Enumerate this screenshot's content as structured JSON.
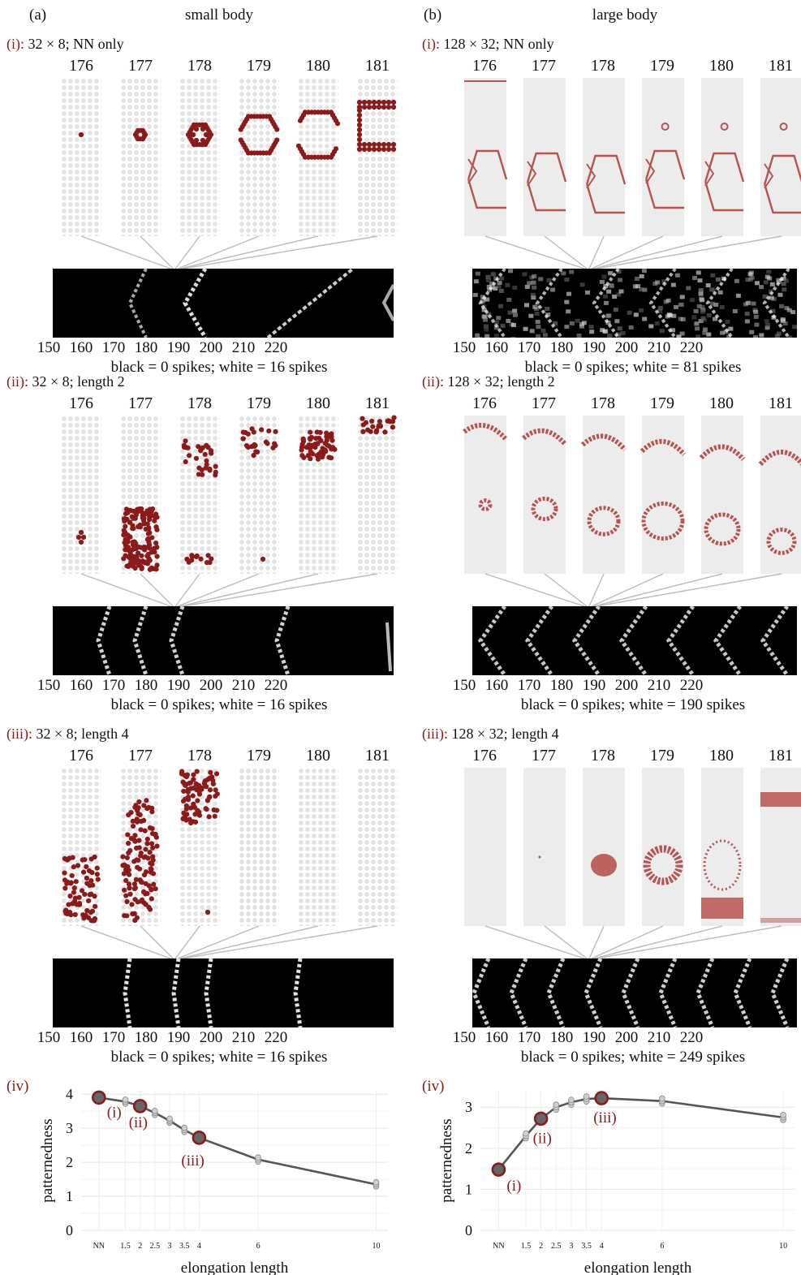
{
  "figure": {
    "panel_a": {
      "letter": "(a)",
      "title": "small body",
      "sub_i": {
        "roman": "(i):",
        "text": "32 × 8; NN only",
        "caption": "black = 0 spikes; white = 16 spikes"
      },
      "sub_ii": {
        "roman": "(ii):",
        "text": "32 × 8; length 2",
        "caption": "black = 0 spikes; white = 16 spikes"
      },
      "sub_iii": {
        "roman": "(iii):",
        "text": "32 × 8; length 4",
        "caption": "black = 0 spikes; white = 16 spikes"
      }
    },
    "panel_b": {
      "letter": "(b)",
      "title": "large body",
      "sub_i": {
        "roman": "(i):",
        "text": "128 × 32; NN only",
        "caption": "black = 0 spikes; white = 81 spikes"
      },
      "sub_ii": {
        "roman": "(ii):",
        "text": "128 × 32; length 2",
        "caption": "black = 0 spikes; white = 190 spikes"
      },
      "sub_iii": {
        "roman": "(iii):",
        "text": "128 × 32; length 4",
        "caption": "black = 0 spikes; white = 249 spikes"
      }
    },
    "time_labels": [
      "176",
      "177",
      "178",
      "179",
      "180",
      "181"
    ],
    "kymo_ticks": [
      "150",
      "160",
      "170",
      "180",
      "190",
      "200",
      "210",
      "220"
    ],
    "colors": {
      "spike_dark": "#8b1a1a",
      "spike_light": "#b85450",
      "strip_bg": "#ececec",
      "line": "#555555",
      "highlight": "#8b1a1a"
    }
  },
  "chart_data": [
    {
      "type": "line",
      "panel_label": "(iv)",
      "xlabel": "elongation length",
      "ylabel": "patternedness",
      "x_tick_labels": [
        "NN",
        "1.5",
        "2",
        "2.5",
        "3",
        "3.5",
        "4",
        "6",
        "10"
      ],
      "y_tick_labels": [
        "0",
        "1",
        "2",
        "3",
        "4"
      ],
      "ylim": [
        0,
        4.1
      ],
      "x": [
        "NN",
        1.5,
        2,
        2.5,
        3,
        3.5,
        4,
        6,
        10
      ],
      "series": [
        {
          "values": [
            3.9,
            3.78,
            3.65,
            3.45,
            3.22,
            2.95,
            2.72,
            2.08,
            1.35
          ]
        }
      ],
      "highlighted": [
        {
          "x": "NN",
          "y": 3.9,
          "label": "(i)"
        },
        {
          "x": 2,
          "y": 3.65,
          "label": "(ii)"
        },
        {
          "x": 4,
          "y": 2.72,
          "label": "(iii)"
        }
      ],
      "grid": true
    },
    {
      "type": "line",
      "panel_label": "(iv)",
      "xlabel": "elongation length",
      "ylabel": "patternedness",
      "x_tick_labels": [
        "NN",
        "1.5",
        "2",
        "2.5",
        "3",
        "3.5",
        "4",
        "6",
        "10"
      ],
      "y_tick_labels": [
        "0",
        "1",
        "2",
        "3"
      ],
      "ylim": [
        0,
        3.4
      ],
      "x": [
        "NN",
        1.5,
        2,
        2.5,
        3,
        3.5,
        4,
        6,
        10
      ],
      "series": [
        {
          "values": [
            1.48,
            2.3,
            2.72,
            3.0,
            3.12,
            3.2,
            3.22,
            3.15,
            2.75
          ]
        }
      ],
      "highlighted": [
        {
          "x": "NN",
          "y": 1.48,
          "label": "(i)"
        },
        {
          "x": 2,
          "y": 2.72,
          "label": "(ii)"
        },
        {
          "x": 4,
          "y": 3.22,
          "label": "(iii)"
        }
      ],
      "grid": true
    }
  ]
}
